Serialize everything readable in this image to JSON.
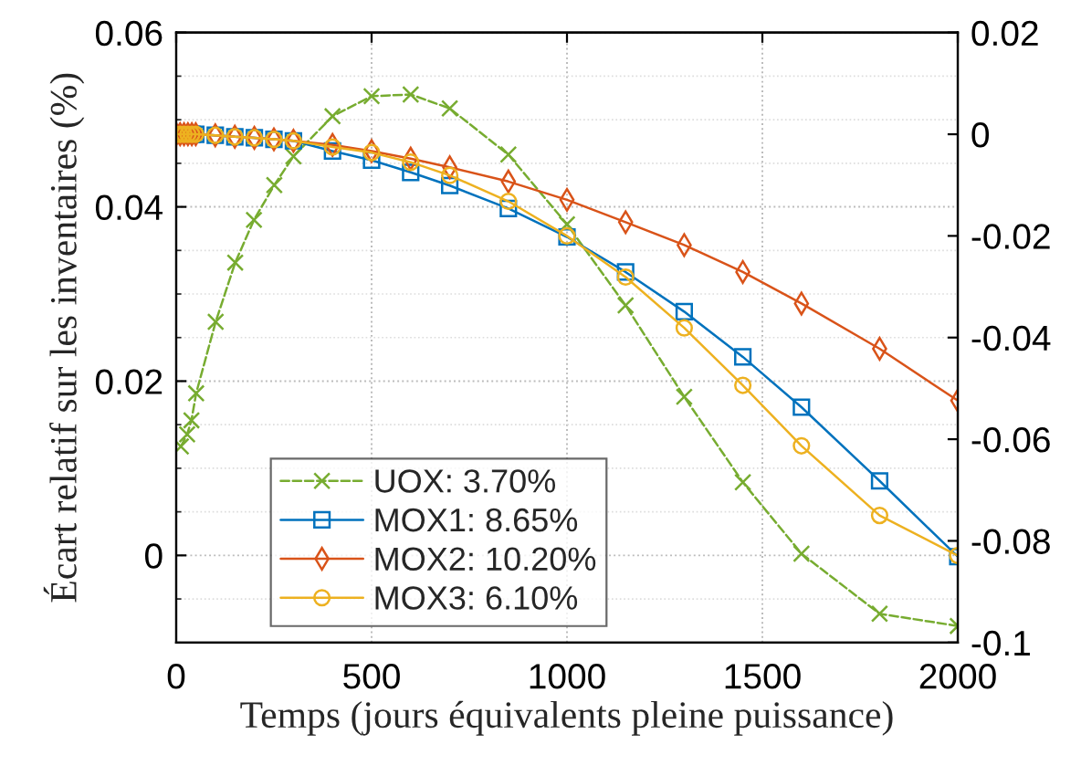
{
  "chart_data": {
    "type": "line",
    "xlabel": "Temps (jours équivalents pleine puissance)",
    "ylabel": "Écart relatif sur les inventaires (%)",
    "xlim": [
      0,
      2000
    ],
    "xticks": [
      0,
      500,
      1000,
      1500,
      2000
    ],
    "ylim": [
      -0.01,
      0.06
    ],
    "yticks": [
      0,
      0.02,
      0.04,
      0.06
    ],
    "y2lim": [
      -0.1,
      0.02
    ],
    "y2ticks": [
      -0.1,
      -0.08,
      -0.06,
      -0.04,
      -0.02,
      0,
      0.02
    ],
    "grid": true,
    "legend": "bottom left",
    "series": [
      {
        "name": "UOX: 3.70%",
        "color": "#77ac30",
        "marker": "cross",
        "line_style": "dashed",
        "axis": "y",
        "x": [
          12,
          28,
          39,
          51,
          101,
          151,
          199,
          251,
          300,
          400,
          500,
          600,
          700,
          850,
          1000,
          1150,
          1300,
          1450,
          1600,
          1800,
          2000
        ],
        "values": [
          0.0125,
          0.0139,
          0.0155,
          0.0186,
          0.0268,
          0.0336,
          0.0385,
          0.0425,
          0.0458,
          0.0504,
          0.0527,
          0.0529,
          0.0513,
          0.046,
          0.038,
          0.0287,
          0.0182,
          0.0084,
          0.0002,
          -0.0067,
          -0.0081
        ]
      },
      {
        "name": "MOX1: 8.65%",
        "color": "#0072bd",
        "marker": "square",
        "line_style": "solid",
        "axis": "y2",
        "x": [
          40,
          50,
          100,
          150,
          200,
          250,
          300,
          400,
          500,
          600,
          700,
          850,
          1000,
          1150,
          1300,
          1450,
          1600,
          1800,
          2000
        ],
        "values": [
          0,
          0,
          -0.0002,
          -0.0005,
          -0.0007,
          -0.001,
          -0.0013,
          -0.0033,
          -0.0051,
          -0.0075,
          -0.0101,
          -0.0146,
          -0.0202,
          -0.0271,
          -0.0349,
          -0.0438,
          -0.0537,
          -0.0682,
          -0.0831
        ]
      },
      {
        "name": "MOX2: 10.20%",
        "color": "#d95319",
        "marker": "diamond",
        "line_style": "solid",
        "axis": "y2",
        "x": [
          0,
          10,
          20,
          30,
          40,
          50,
          100,
          150,
          200,
          250,
          300,
          400,
          500,
          600,
          700,
          850,
          1000,
          1150,
          1300,
          1450,
          1600,
          1800,
          2000
        ],
        "values": [
          0,
          0,
          0,
          0,
          0,
          0,
          -0.0002,
          -0.0005,
          -0.0007,
          -0.001,
          -0.0013,
          -0.0021,
          -0.0033,
          -0.0048,
          -0.0065,
          -0.0093,
          -0.0129,
          -0.0173,
          -0.0218,
          -0.0271,
          -0.0333,
          -0.0422,
          -0.0524
        ]
      },
      {
        "name": "MOX3: 6.10%",
        "color": "#edb120",
        "marker": "circle",
        "line_style": "solid",
        "axis": "y2",
        "x": [
          0,
          10,
          20,
          30,
          40,
          50,
          100,
          150,
          200,
          250,
          300,
          400,
          500,
          600,
          700,
          850,
          1000,
          1150,
          1300,
          1450,
          1600,
          1800,
          2000
        ],
        "values": [
          0,
          0,
          0,
          0,
          0,
          0,
          -0.0002,
          -0.0005,
          -0.0007,
          -0.001,
          -0.0013,
          -0.0025,
          -0.0036,
          -0.0055,
          -0.0081,
          -0.0132,
          -0.02,
          -0.0281,
          -0.0381,
          -0.0494,
          -0.0613,
          -0.075,
          -0.0829
        ]
      }
    ]
  }
}
